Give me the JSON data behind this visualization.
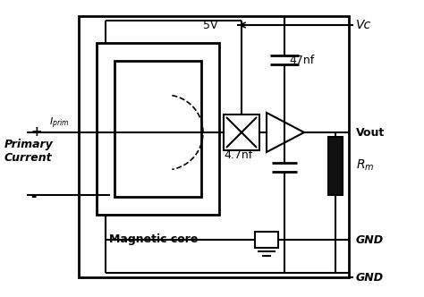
{
  "fig_width": 4.74,
  "fig_height": 3.32,
  "dpi": 100,
  "bg_color": "#ffffff",
  "line_color": "#000000",
  "lw": 1.5,
  "labels": {
    "plus": "+",
    "minus": "-",
    "Iprim": "$I_{prim}$",
    "primary_current": "Primary\nCurrent",
    "magnetic_core": "Magnetic core",
    "V5": "5V",
    "cap47": "47nf",
    "cap4_7": "4.7nf",
    "Vc": "Vc",
    "Vout": "Vout",
    "Rm": "$R_m$",
    "GND1": "GND",
    "GND2": "GND"
  }
}
